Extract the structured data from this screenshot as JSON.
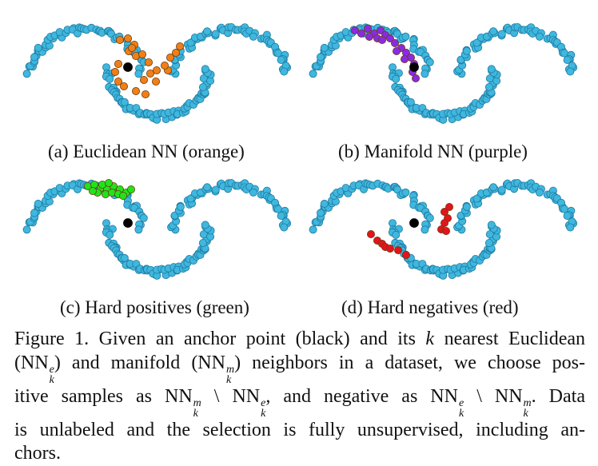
{
  "colors": {
    "base_point": "#3fb7de",
    "base_edge": "#1f7aa0",
    "anchor": "#000000",
    "euclidean": "#ef7f16",
    "manifold": "#8a2be2",
    "positive": "#22e31a",
    "negative": "#e3141b"
  },
  "panels": [
    {
      "id": "a",
      "label": "(a) Euclidean NN (orange)",
      "highlight": "euclidean"
    },
    {
      "id": "b",
      "label": "(b) Manifold NN (purple)",
      "highlight": "manifold"
    },
    {
      "id": "c",
      "label": "(c) Hard positives (green)",
      "highlight": "positive"
    },
    {
      "id": "d",
      "label": "(d) Hard negatives (red)",
      "highlight": "negative"
    }
  ],
  "caption": {
    "l1a": "Figure 1. Given an anchor point (black) and its ",
    "k": "k",
    "l1b": " nearest Euclidean",
    "l2a": "(NN",
    "l2b": ") and manifold (NN",
    "l2c": ") neighbors in a dataset, we choose pos-",
    "l3a": "itive samples as NN",
    "l3b": " \\ NN",
    "l3c": ", and negative as NN",
    "l3d": " \\ NN",
    "l3e": ". Data",
    "l4": "is unlabeled and the selection is fully unsupervised, including an-",
    "l5": "chors.",
    "sup_e": "e",
    "sup_m": "m",
    "sub_k": "k"
  }
}
